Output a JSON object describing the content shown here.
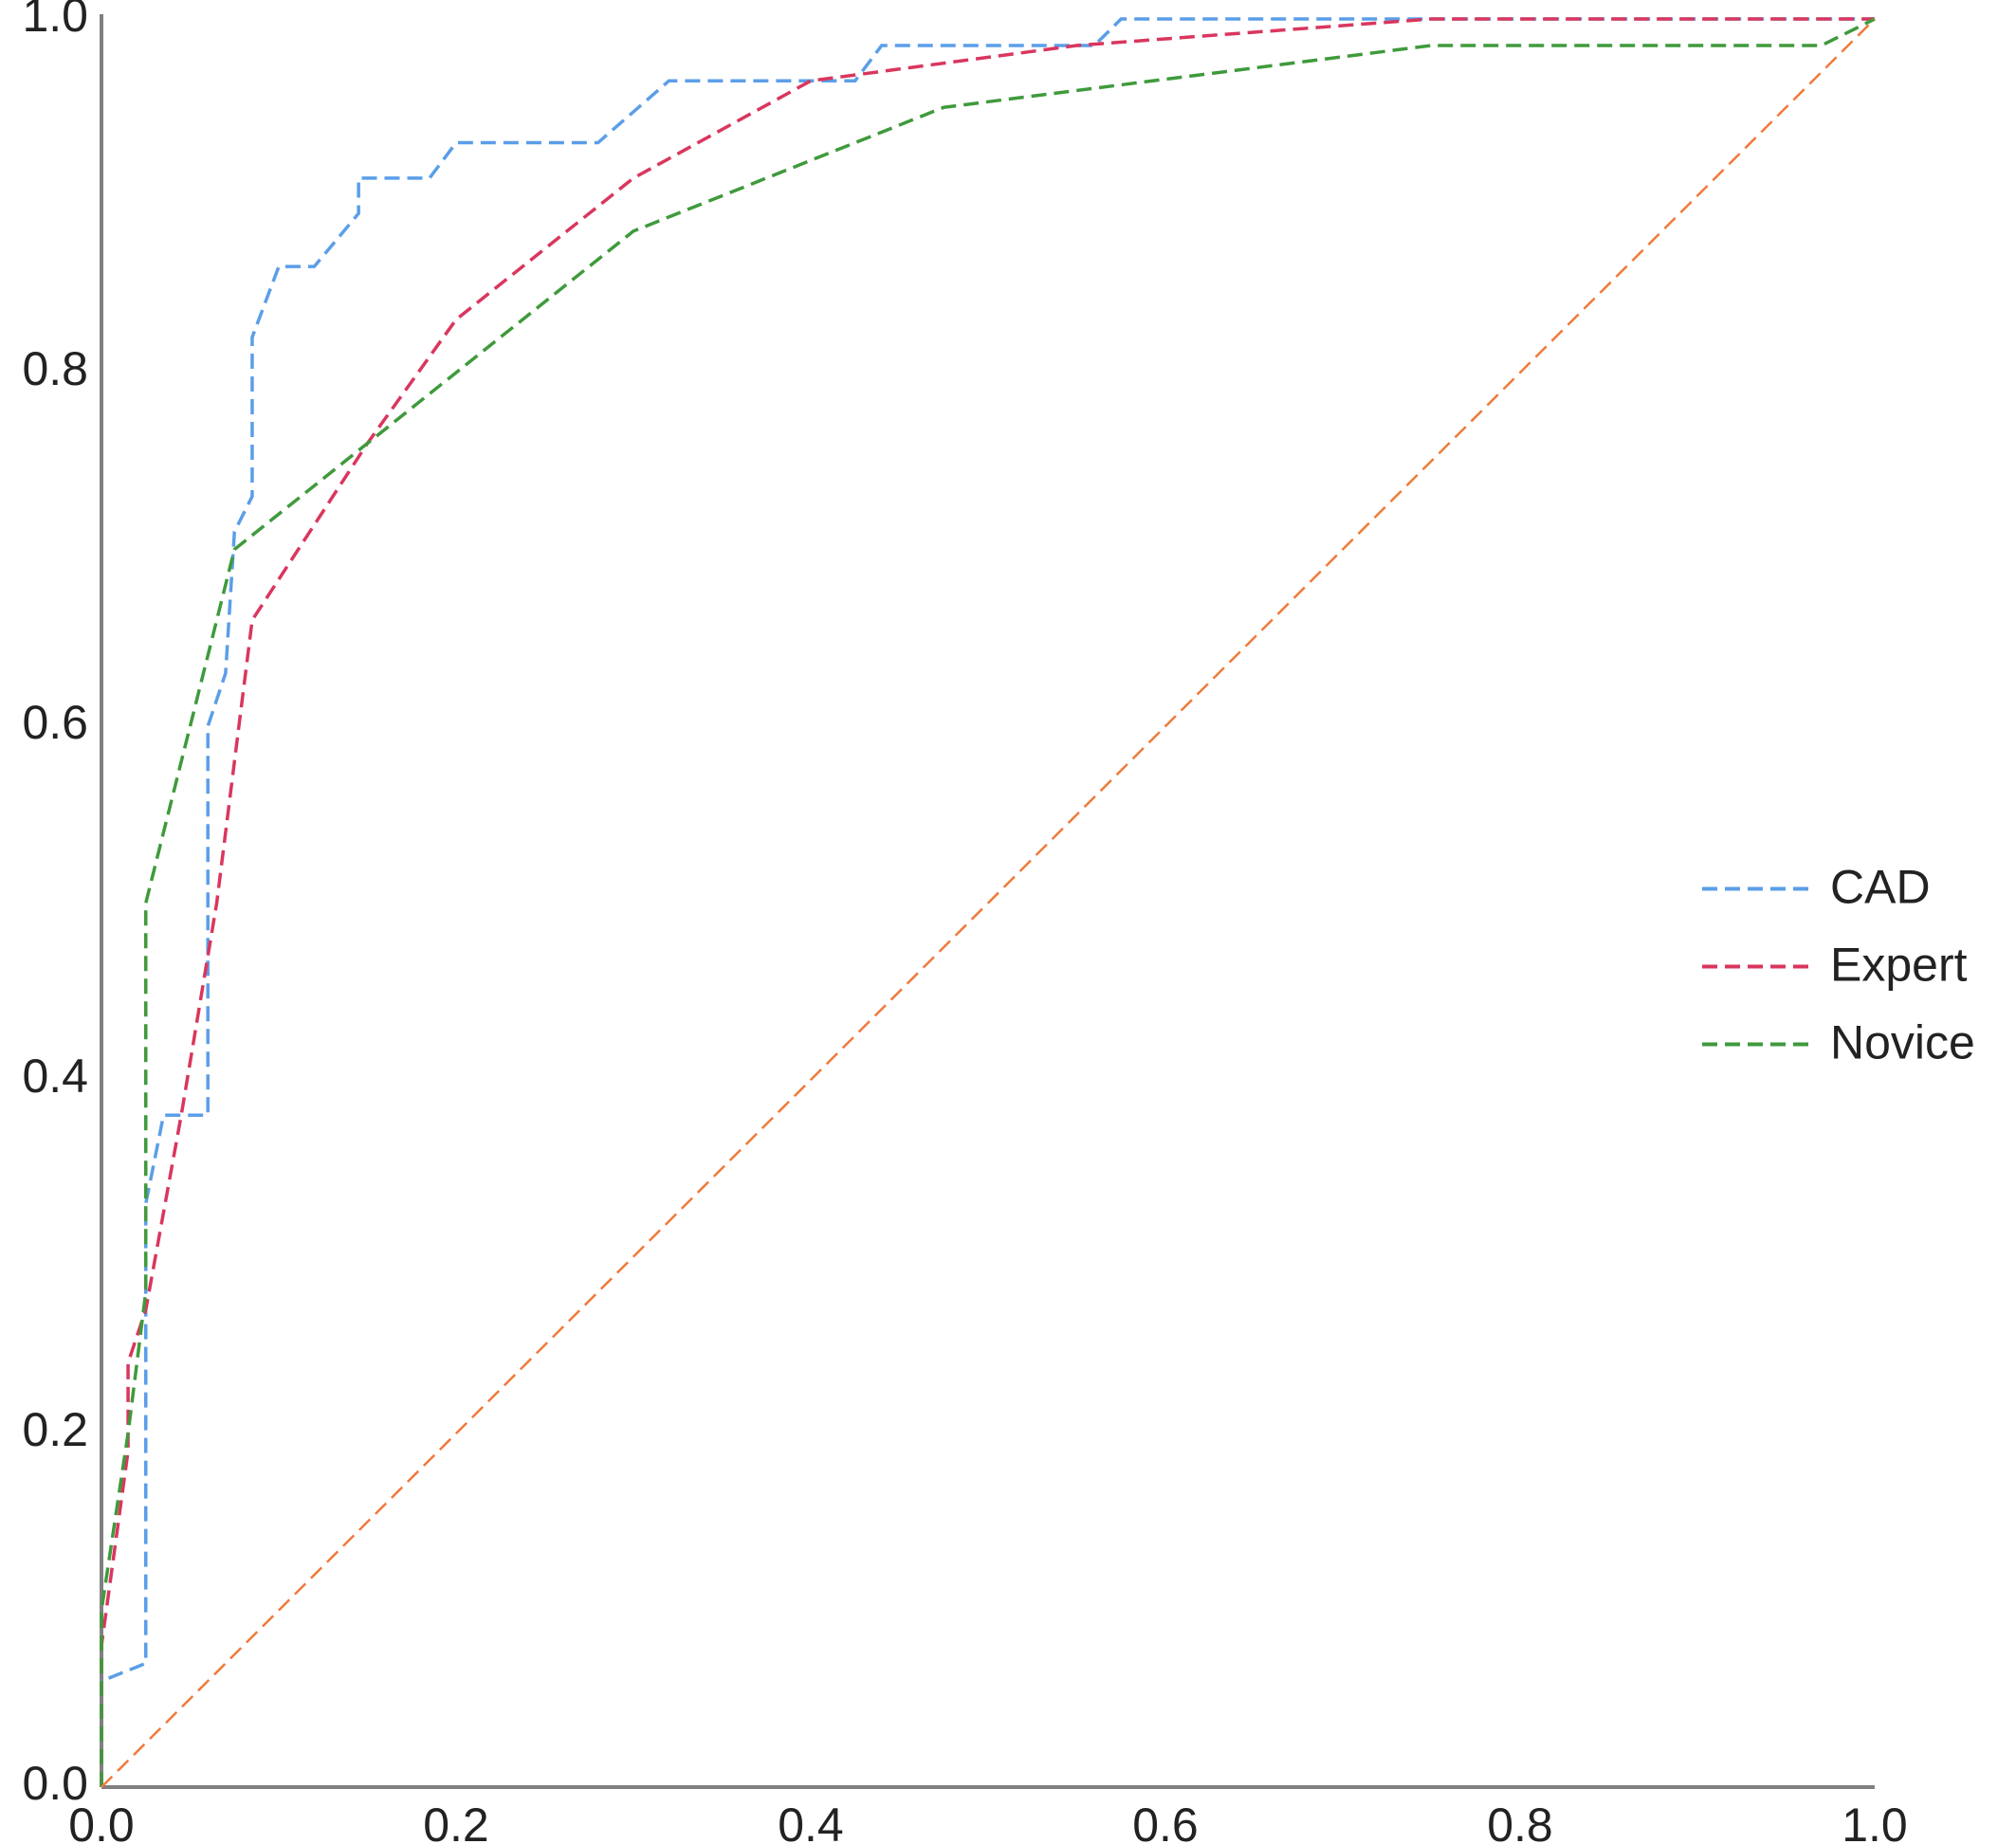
{
  "chart_data": {
    "type": "line",
    "xlim": [
      0,
      1
    ],
    "ylim": [
      0,
      1
    ],
    "xticks": [
      {
        "value": 0,
        "label": "0.0"
      },
      0.2,
      0.4,
      0.6,
      0.8,
      {
        "value": 1,
        "label": "1.0"
      }
    ],
    "yticks": [
      {
        "value": 0,
        "label": "0.0"
      },
      0.2,
      0.4,
      0.6,
      0.8,
      {
        "value": 1,
        "label": "1.0"
      }
    ],
    "grid": false,
    "legend": "right",
    "series": [
      {
        "name": "CAD",
        "color": "#5b9ee8",
        "x": [
          0,
          0,
          0.025,
          0.025,
          0.035,
          0.06,
          0.06,
          0.07,
          0.075,
          0.085,
          0.085,
          0.1,
          0.12,
          0.145,
          0.145,
          0.185,
          0.2,
          0.28,
          0.32,
          0.425,
          0.44,
          0.56,
          0.575,
          1
        ],
        "values": [
          0,
          0.06,
          0.07,
          0.33,
          0.38,
          0.38,
          0.6,
          0.63,
          0.71,
          0.73,
          0.82,
          0.86,
          0.86,
          0.89,
          0.91,
          0.91,
          0.93,
          0.93,
          0.965,
          0.965,
          0.985,
          0.985,
          1,
          1
        ]
      },
      {
        "name": "Expert",
        "color": "#d9365e",
        "x": [
          0,
          0,
          0.015,
          0.015,
          0.025,
          0.045,
          0.065,
          0.085,
          0.15,
          0.2,
          0.3,
          0.4,
          0.55,
          0.75,
          1
        ],
        "values": [
          0,
          0.08,
          0.19,
          0.24,
          0.27,
          0.38,
          0.5,
          0.66,
          0.76,
          0.83,
          0.91,
          0.965,
          0.985,
          1,
          1
        ]
      },
      {
        "name": "Novice",
        "color": "#3f9a3c",
        "x": [
          0,
          0,
          0.015,
          0.025,
          0.025,
          0.045,
          0.075,
          0.15,
          0.3,
          0.475,
          0.75,
          0.97,
          1
        ],
        "values": [
          0,
          0.1,
          0.2,
          0.28,
          0.5,
          0.58,
          0.7,
          0.76,
          0.88,
          0.95,
          0.985,
          0.985,
          1
        ]
      },
      {
        "color": "#f07a3a",
        "x": [
          0,
          1
        ],
        "values": [
          0,
          1
        ]
      }
    ]
  }
}
